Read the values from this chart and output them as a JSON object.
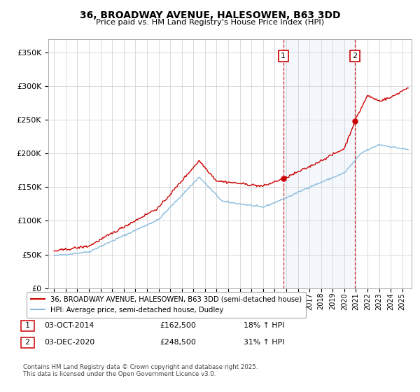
{
  "title": "36, BROADWAY AVENUE, HALESOWEN, B63 3DD",
  "subtitle": "Price paid vs. HM Land Registry's House Price Index (HPI)",
  "legend_line1": "36, BROADWAY AVENUE, HALESOWEN, B63 3DD (semi-detached house)",
  "legend_line2": "HPI: Average price, semi-detached house, Dudley",
  "annotation1_label": "1",
  "annotation1_date": "03-OCT-2014",
  "annotation1_price": 162500,
  "annotation1_text": "18% ↑ HPI",
  "annotation2_label": "2",
  "annotation2_date": "03-DEC-2020",
  "annotation2_price": 248500,
  "annotation2_text": "31% ↑ HPI",
  "footer": "Contains HM Land Registry data © Crown copyright and database right 2025.\nThis data is licensed under the Open Government Licence v3.0.",
  "sale1_x": 2014.75,
  "sale2_x": 2020.92,
  "red_color": "#cc0000",
  "blue_color": "#88bbdd",
  "background_color": "#ffffff",
  "ylim_min": 0,
  "ylim_max": 370000,
  "xlim_min": 1994.5,
  "xlim_max": 2025.8
}
